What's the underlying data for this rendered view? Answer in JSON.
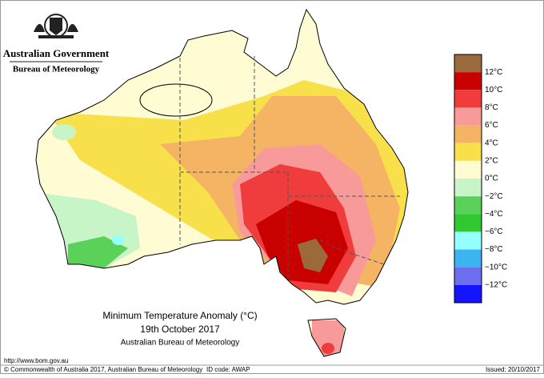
{
  "header": {
    "government": "Australian Government",
    "bureau": "Bureau of Meteorology"
  },
  "title": {
    "line1": "Minimum Temperature Anomaly (°C)",
    "line2": "19th October 2017",
    "line3": "Australian Bureau of Meteorology"
  },
  "legend": {
    "colors": [
      "#9b6a3c",
      "#c80000",
      "#f03c3c",
      "#f99a9a",
      "#f5b464",
      "#f8e04a",
      "#fffbd2",
      "#c8f5c8",
      "#5ad25a",
      "#32c832",
      "#96ffff",
      "#3cb4f0",
      "#6e6ef0",
      "#1414ff"
    ],
    "labels": [
      "12°C",
      "10°C",
      "8°C",
      "6°C",
      "4°C",
      "2°C",
      "0°C",
      "−2°C",
      "−4°C",
      "−6°C",
      "−8°C",
      "−10°C",
      "−12°C"
    ]
  },
  "footer": {
    "url": "http://www.bom.gov.au",
    "copyright": "© Commonwealth of Australia 2017, Australian Bureau of Meteorology",
    "id_code": "ID code: AWAP",
    "issued": "Issued: 20/10/2017"
  }
}
